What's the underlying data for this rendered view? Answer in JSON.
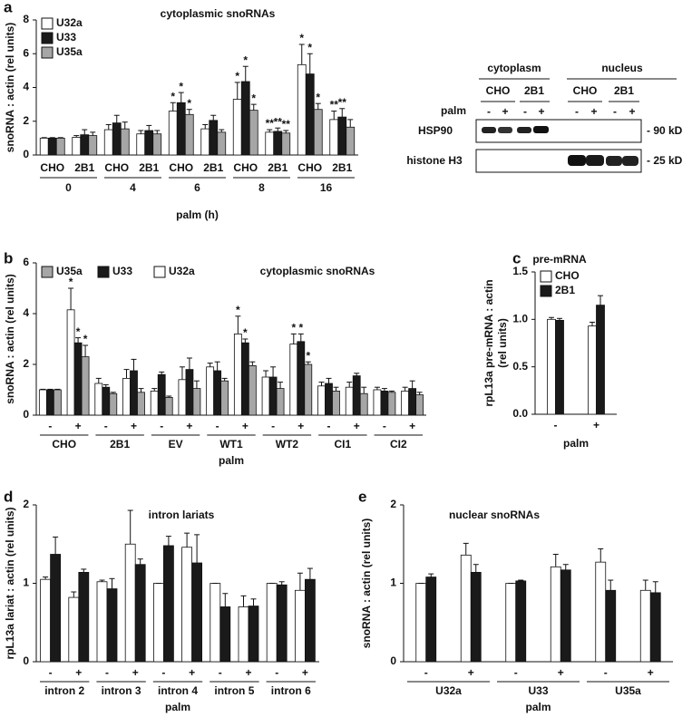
{
  "chart_data": [
    {
      "type": "bar",
      "panel": "a",
      "title": "cytoplasmic snoRNAs",
      "ylabel": [
        "snoRNA : actin (rel units)"
      ],
      "xlabel": "palm (h)",
      "categories": [
        "CHO",
        "2B1",
        "CHO",
        "2B1",
        "CHO",
        "2B1",
        "CHO",
        "2B1",
        "CHO",
        "2B1"
      ],
      "groups": [
        "0",
        "4",
        "6",
        "8",
        "16"
      ],
      "series": [
        {
          "name": "U32a",
          "color": "#ffffff",
          "values": [
            1.0,
            1.05,
            1.5,
            1.25,
            2.6,
            1.55,
            3.3,
            1.35,
            5.35,
            2.1
          ],
          "errors": [
            0.03,
            0.1,
            0.3,
            0.2,
            0.5,
            0.25,
            1.0,
            0.15,
            1.2,
            0.5
          ],
          "stars": [
            null,
            null,
            null,
            null,
            "*",
            null,
            "*",
            "**",
            "*",
            "**"
          ]
        },
        {
          "name": "U33",
          "color": "#1a1a1a",
          "values": [
            1.0,
            1.2,
            1.9,
            1.45,
            3.1,
            2.05,
            4.35,
            1.4,
            4.8,
            2.25
          ],
          "errors": [
            0.03,
            0.3,
            0.45,
            0.3,
            0.6,
            0.3,
            0.9,
            0.2,
            1.2,
            0.5
          ],
          "stars": [
            null,
            null,
            null,
            null,
            "*",
            null,
            "*",
            "**",
            "*",
            "**"
          ]
        },
        {
          "name": "U35a",
          "color": "#a6a6a6",
          "values": [
            1.0,
            1.15,
            1.55,
            1.25,
            2.4,
            1.35,
            2.65,
            1.3,
            2.7,
            1.65
          ],
          "errors": [
            0.03,
            0.2,
            0.4,
            0.2,
            0.3,
            0.15,
            0.35,
            0.15,
            0.35,
            0.45
          ],
          "stars": [
            null,
            null,
            null,
            null,
            "*",
            null,
            "*",
            "**",
            "*",
            null
          ]
        }
      ],
      "ylim": [
        0,
        8
      ],
      "yticks": [
        0,
        2,
        4,
        6,
        8
      ],
      "legend": "upper left"
    },
    {
      "type": "bar",
      "panel": "b",
      "title": "cytoplasmic snoRNAs",
      "ylabel": [
        "snoRNA : actin (rel units)"
      ],
      "xlabel": "palm",
      "categories": [
        "-",
        "+",
        "-",
        "+",
        "-",
        "+",
        "-",
        "+",
        "-",
        "+",
        "-",
        "+",
        "-",
        "+"
      ],
      "groups": [
        "CHO",
        "2B1",
        "EV",
        "WT1",
        "WT2",
        "CI1",
        "CI2"
      ],
      "series": [
        {
          "name": "U35a",
          "color": "#a6a6a6",
          "values": [
            1.0,
            2.3,
            0.85,
            0.9,
            0.7,
            1.05,
            1.35,
            1.95,
            1.05,
            2.0,
            0.95,
            0.85,
            0.9,
            0.8
          ],
          "errors": [
            0.02,
            0.45,
            0.05,
            0.15,
            0.05,
            0.3,
            0.1,
            0.15,
            0.25,
            0.1,
            0.15,
            0.25,
            0.05,
            0.1
          ],
          "stars": [
            null,
            "*",
            null,
            null,
            null,
            null,
            null,
            null,
            null,
            "*",
            null,
            null,
            null,
            null
          ]
        },
        {
          "name": "U33",
          "color": "#1a1a1a",
          "values": [
            1.0,
            2.85,
            1.1,
            1.75,
            1.6,
            1.8,
            1.75,
            2.85,
            1.5,
            2.9,
            1.25,
            1.55,
            0.95,
            1.05
          ],
          "errors": [
            0.02,
            0.2,
            0.1,
            0.45,
            0.1,
            0.45,
            0.35,
            0.15,
            0.4,
            0.3,
            0.2,
            0.1,
            0.1,
            0.3
          ],
          "stars": [
            null,
            "*",
            null,
            null,
            null,
            null,
            null,
            "*",
            null,
            "*",
            null,
            null,
            null,
            null
          ]
        },
        {
          "name": "U32a",
          "color": "#ffffff",
          "values": [
            1.0,
            4.15,
            1.25,
            1.45,
            0.95,
            1.4,
            1.9,
            3.2,
            1.5,
            2.8,
            1.15,
            1.1,
            1.0,
            0.95
          ],
          "errors": [
            0.02,
            0.85,
            0.2,
            0.35,
            0.1,
            0.5,
            0.15,
            0.7,
            0.25,
            0.4,
            0.15,
            0.2,
            0.1,
            0.15
          ],
          "stars": [
            null,
            "*",
            null,
            null,
            null,
            null,
            null,
            "*",
            null,
            "*",
            null,
            null,
            null,
            null
          ]
        }
      ],
      "ylim": [
        0,
        6
      ],
      "yticks": [
        0,
        2,
        4,
        6
      ],
      "legend": "upper left"
    },
    {
      "type": "bar",
      "panel": "c",
      "title": "pre-mRNA",
      "ylabel": [
        "rpL13a pre-mRNA : actin",
        "(rel units)"
      ],
      "xlabel": "palm",
      "categories": [
        "-",
        "+"
      ],
      "series": [
        {
          "name": "CHO",
          "color": "#ffffff",
          "values": [
            1.0,
            0.93
          ],
          "errors": [
            0.02,
            0.04
          ]
        },
        {
          "name": "2B1",
          "color": "#1a1a1a",
          "values": [
            0.99,
            1.15
          ],
          "errors": [
            0.02,
            0.1
          ]
        }
      ],
      "ylim": [
        0,
        1.5
      ],
      "yticks": [
        {
          "value": 0,
          "label": "0.0"
        },
        0.5,
        {
          "value": 1,
          "label": "1.0"
        },
        1.5
      ],
      "legend": "upper left"
    },
    {
      "type": "bar",
      "panel": "d",
      "title": "intron lariats",
      "ylabel": [
        "rpL13a lariat : actin (rel units)"
      ],
      "xlabel": "palm",
      "categories": [
        "-",
        "+",
        "-",
        "+",
        "-",
        "+",
        "-",
        "+",
        "-",
        "+"
      ],
      "groups": [
        "intron 2",
        "intron 3",
        "intron 4",
        "intron 5",
        "intron 6"
      ],
      "series": [
        {
          "color": "#ffffff",
          "values": [
            1.05,
            0.82,
            1.02,
            1.5,
            1.0,
            1.46,
            1.0,
            0.7,
            1.0,
            0.91
          ],
          "errors": [
            0.03,
            0.07,
            0.02,
            0.43,
            0,
            0.18,
            0,
            0.14,
            0,
            0.22
          ]
        },
        {
          "color": "#1a1a1a",
          "values": [
            1.37,
            1.14,
            0.93,
            1.24,
            1.48,
            1.26,
            0.7,
            0.71,
            0.98,
            1.05
          ],
          "errors": [
            0.22,
            0.04,
            0.13,
            0.07,
            0.12,
            0.36,
            0.17,
            0.09,
            0.04,
            0.14
          ]
        }
      ],
      "ylim": [
        0,
        2
      ],
      "yticks": [
        0,
        1,
        2
      ]
    },
    {
      "type": "bar",
      "panel": "e",
      "title": "nuclear snoRNAs",
      "ylabel": [
        "snoRNA : actin (rel units)"
      ],
      "xlabel": "palm",
      "categories": [
        "-",
        "+",
        "-",
        "+",
        "-",
        "+"
      ],
      "groups": [
        "U32a",
        "U33",
        "U35a"
      ],
      "series": [
        {
          "color": "#ffffff",
          "values": [
            1.0,
            1.36,
            1.0,
            1.21,
            1.27,
            0.91
          ],
          "errors": [
            0,
            0.15,
            0,
            0.16,
            0.17,
            0.13
          ]
        },
        {
          "color": "#1a1a1a",
          "values": [
            1.08,
            1.14,
            1.03,
            1.17,
            0.91,
            0.88
          ],
          "errors": [
            0.04,
            0.1,
            0.01,
            0.07,
            0.13,
            0.14
          ]
        }
      ],
      "ylim": [
        0,
        2
      ],
      "yticks": [
        0,
        1,
        2
      ]
    }
  ],
  "blot": {
    "compartments": [
      "cytoplasm",
      "nucleus"
    ],
    "lines": [
      "CHO",
      "2B1",
      "CHO",
      "2B1"
    ],
    "treatment": "palm",
    "signs": [
      "-",
      "+",
      "-",
      "+",
      "-",
      "+",
      "-",
      "+"
    ],
    "rows": [
      {
        "label": "HSP90",
        "size": "- 90 kD"
      },
      {
        "label": "histone H3",
        "size": "- 25 kD"
      }
    ]
  }
}
